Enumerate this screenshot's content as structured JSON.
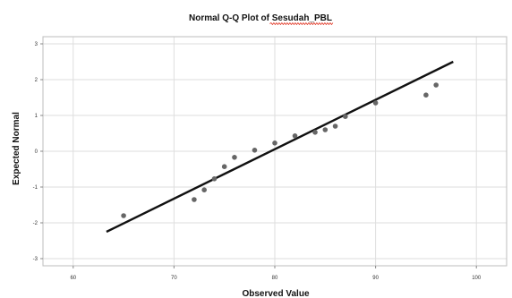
{
  "chart_data": {
    "type": "scatter",
    "title": "Normal Q-Q Plot of Sesudah_PBL",
    "xlabel": "Observed Value",
    "ylabel": "Expected Normal",
    "xlim": [
      57,
      103
    ],
    "ylim": [
      -3.2,
      3.2
    ],
    "x_ticks": [
      60,
      70,
      80,
      90,
      100
    ],
    "y_ticks": [
      3,
      2,
      1,
      0,
      -1,
      -2,
      -3
    ],
    "grid": true,
    "points": [
      {
        "x": 65,
        "y": -1.8
      },
      {
        "x": 72,
        "y": -1.35
      },
      {
        "x": 73,
        "y": -1.08
      },
      {
        "x": 74,
        "y": -0.77
      },
      {
        "x": 75,
        "y": -0.43
      },
      {
        "x": 76,
        "y": -0.17
      },
      {
        "x": 78,
        "y": 0.03
      },
      {
        "x": 80,
        "y": 0.23
      },
      {
        "x": 82,
        "y": 0.43
      },
      {
        "x": 84,
        "y": 0.53
      },
      {
        "x": 85,
        "y": 0.6
      },
      {
        "x": 86,
        "y": 0.7
      },
      {
        "x": 87,
        "y": 0.97
      },
      {
        "x": 90,
        "y": 1.35
      },
      {
        "x": 95,
        "y": 1.57
      },
      {
        "x": 96,
        "y": 1.85
      }
    ],
    "reference_line": {
      "x1": 63.3,
      "y1": -2.25,
      "x2": 97.7,
      "y2": 2.5
    },
    "colors": {
      "point": "#666666",
      "line": "#111111",
      "grid": "#dedede",
      "frame": "#bdbdbd",
      "title_underline": "#e0301e"
    }
  }
}
